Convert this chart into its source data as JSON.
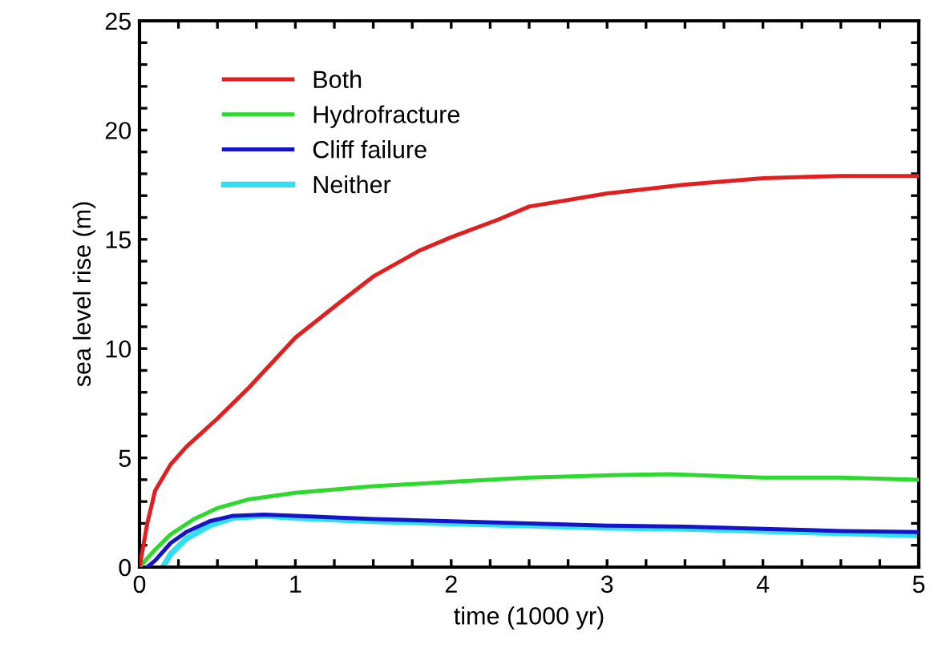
{
  "chart_data": {
    "type": "line",
    "xlabel": "time (1000 yr)",
    "ylabel": "sea level rise (m)",
    "xlim": [
      0,
      5
    ],
    "ylim": [
      0,
      25
    ],
    "xticks": [
      0,
      {
        "value": 0.25,
        "label": null
      },
      {
        "value": 0.5,
        "label": null
      },
      {
        "value": 0.75,
        "label": null
      },
      1,
      {
        "value": 1.25,
        "label": null
      },
      {
        "value": 1.5,
        "label": null
      },
      {
        "value": 1.75,
        "label": null
      },
      2,
      {
        "value": 2.25,
        "label": null
      },
      {
        "value": 2.5,
        "label": null
      },
      {
        "value": 2.75,
        "label": null
      },
      3,
      {
        "value": 3.25,
        "label": null
      },
      {
        "value": 3.5,
        "label": null
      },
      {
        "value": 3.75,
        "label": null
      },
      4,
      {
        "value": 4.25,
        "label": null
      },
      {
        "value": 4.5,
        "label": null
      },
      {
        "value": 4.75,
        "label": null
      },
      5
    ],
    "yticks": [
      0,
      {
        "value": 1,
        "label": null
      },
      {
        "value": 2,
        "label": null
      },
      {
        "value": 3,
        "label": null
      },
      {
        "value": 4,
        "label": null
      },
      5,
      {
        "value": 6,
        "label": null
      },
      {
        "value": 7,
        "label": null
      },
      {
        "value": 8,
        "label": null
      },
      {
        "value": 9,
        "label": null
      },
      10,
      {
        "value": 11,
        "label": null
      },
      {
        "value": 12,
        "label": null
      },
      {
        "value": 13,
        "label": null
      },
      {
        "value": 14,
        "label": null
      },
      15,
      {
        "value": 16,
        "label": null
      },
      {
        "value": 17,
        "label": null
      },
      {
        "value": 18,
        "label": null
      },
      {
        "value": 19,
        "label": null
      },
      20,
      {
        "value": 21,
        "label": null
      },
      {
        "value": 22,
        "label": null
      },
      {
        "value": 23,
        "label": null
      },
      {
        "value": 24,
        "label": null
      },
      25
    ],
    "grid": false,
    "legend": "top left",
    "marker": "none",
    "line_style": "solid",
    "series": [
      {
        "name": "Both",
        "color": "#e02020",
        "x": [
          0,
          0.05,
          0.1,
          0.2,
          0.3,
          0.5,
          0.7,
          1.0,
          1.3,
          1.5,
          1.8,
          2.0,
          2.3,
          2.5,
          3.0,
          3.5,
          4.0,
          4.5,
          5.0
        ],
        "values": [
          0,
          2,
          3.5,
          4.7,
          5.5,
          6.8,
          8.2,
          10.5,
          12.2,
          13.3,
          14.5,
          15.1,
          15.9,
          16.5,
          17.1,
          17.5,
          17.8,
          17.9,
          17.9
        ]
      },
      {
        "name": "Hydrofracture",
        "color": "#2ed82e",
        "x": [
          0,
          0.1,
          0.2,
          0.35,
          0.5,
          0.7,
          1.0,
          1.5,
          2.0,
          2.5,
          3.0,
          3.4,
          4.0,
          4.5,
          5.0
        ],
        "values": [
          0,
          0.8,
          1.5,
          2.2,
          2.7,
          3.1,
          3.4,
          3.7,
          3.9,
          4.1,
          4.2,
          4.25,
          4.1,
          4.1,
          4.0
        ]
      },
      {
        "name": "Cliff failure",
        "color": "#1515c8",
        "x": [
          0.05,
          0.1,
          0.2,
          0.3,
          0.45,
          0.6,
          0.8,
          1.0,
          1.5,
          2.0,
          2.5,
          3.0,
          3.5,
          4.0,
          4.5,
          5.0
        ],
        "values": [
          0,
          0.3,
          1.1,
          1.6,
          2.1,
          2.35,
          2.4,
          2.35,
          2.2,
          2.1,
          2.0,
          1.9,
          1.85,
          1.75,
          1.65,
          1.6
        ]
      },
      {
        "name": "Neither",
        "color": "#30e0f0",
        "x": [
          0.15,
          0.2,
          0.3,
          0.45,
          0.6,
          0.8,
          1.0,
          1.5,
          2.0,
          2.5,
          3.0,
          3.5,
          4.0,
          4.5,
          5.0
        ],
        "values": [
          0,
          0.6,
          1.3,
          1.9,
          2.25,
          2.35,
          2.25,
          2.1,
          2.0,
          1.9,
          1.8,
          1.75,
          1.65,
          1.55,
          1.45
        ]
      }
    ]
  }
}
